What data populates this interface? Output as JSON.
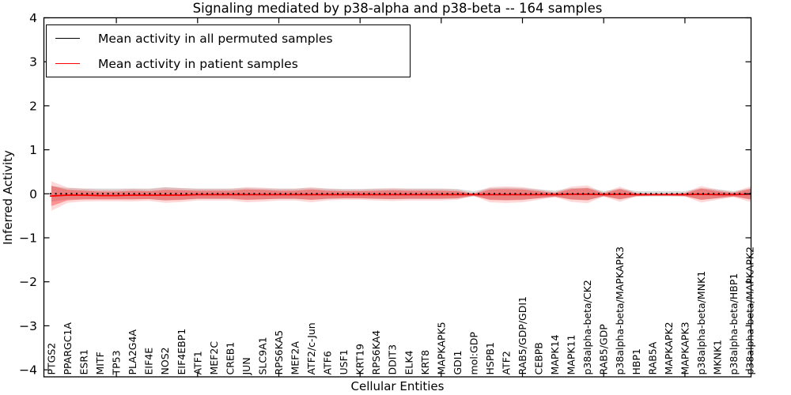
{
  "title": "Signaling mediated by p38-alpha and p38-beta -- 164 samples",
  "legend": {
    "items": [
      {
        "label": "Mean activity in all permuted samples",
        "color": "#000000"
      },
      {
        "label": "Mean activity in patient samples",
        "color": "#ff0000"
      }
    ],
    "position": "upper left"
  },
  "colors": {
    "patient_line": "#ff0000",
    "permuted_line": "#000000",
    "patient_band": "rgba(255,0,0,0.32)",
    "patient_band_fringe": "rgba(255,0,0,0.15)",
    "permuted_band": "rgba(110,110,110,0.24)",
    "axes": "#000000",
    "background": "#ffffff"
  },
  "chart_data": {
    "type": "line",
    "title": "Signaling mediated by p38-alpha and p38-beta -- 164 samples",
    "xlabel": "Cellular Entities",
    "ylabel": "Inferred Activity",
    "ylim": [
      -4,
      4
    ],
    "yticks": [
      4,
      3,
      2,
      1,
      0,
      -1,
      -2,
      -3,
      -4
    ],
    "xtick_indices": [
      4,
      9,
      14,
      19,
      24,
      29,
      34,
      39
    ],
    "grid": false,
    "legend_position": "upper left",
    "categories": [
      "PTGS2",
      "PPARGC1A",
      "ESR1",
      "MITF",
      "TP53",
      "PLA2G4A",
      "EIF4E",
      "NOS2",
      "EIF4EBP1",
      "ATF1",
      "MEF2C",
      "CREB1",
      "JUN",
      "SLC9A1",
      "RPS6KA5",
      "MEF2A",
      "ATF2/c-Jun",
      "ATF6",
      "USF1",
      "KRT19",
      "RPS6KA4",
      "DDIT3",
      "ELK4",
      "KRT8",
      "MAPKAPK5",
      "GDI1",
      "mol:GDP",
      "HSPB1",
      "ATF2",
      "RAB5/GDP/GDI1",
      "CEBPB",
      "MAPK14",
      "MAPK11",
      "p38alpha-beta/CK2",
      "RAB5/GDP",
      "p38alpha-beta/MAPKAPK3",
      "HBP1",
      "RAB5A",
      "MAPKAPK2",
      "MAPKAPK3",
      "p38alpha-beta/MNK1",
      "MKNK1",
      "p38alpha-beta/HBP1",
      "p38alpha-beta/MAPKAPK2"
    ],
    "series": [
      {
        "name": "Mean activity in all permuted samples",
        "color": "#000000",
        "style": "dotted",
        "values": [
          0,
          0,
          0,
          0,
          0,
          0,
          0,
          0,
          0,
          0,
          0,
          0,
          0,
          0,
          0,
          0,
          0,
          0,
          0,
          0,
          0,
          0,
          0,
          0,
          0,
          0,
          0,
          0,
          0,
          0,
          0,
          0,
          0,
          0,
          0,
          0,
          0,
          0,
          0,
          0,
          0,
          0,
          0,
          0
        ]
      },
      {
        "name": "Mean activity in patient samples",
        "color": "#ff0000",
        "style": "solid",
        "values": [
          -0.05,
          -0.03,
          -0.03,
          -0.04,
          -0.04,
          -0.03,
          -0.03,
          -0.03,
          -0.03,
          -0.02,
          -0.02,
          -0.02,
          -0.02,
          -0.02,
          -0.02,
          -0.02,
          -0.02,
          -0.02,
          -0.02,
          -0.02,
          -0.02,
          -0.02,
          -0.02,
          -0.02,
          -0.02,
          -0.02,
          -0.02,
          -0.02,
          -0.02,
          -0.02,
          -0.02,
          -0.02,
          -0.01,
          -0.01,
          -0.02,
          -0.01,
          -0.02,
          -0.02,
          -0.02,
          -0.02,
          -0.01,
          -0.02,
          -0.02,
          -0.01
        ]
      }
    ],
    "bands": [
      {
        "name": "permuted-std-band",
        "around_series": 0,
        "color": "rgba(110,110,110,0.24)",
        "half_widths": [
          0.18,
          0.13,
          0.12,
          0.12,
          0.12,
          0.12,
          0.12,
          0.15,
          0.13,
          0.12,
          0.12,
          0.12,
          0.13,
          0.12,
          0.12,
          0.12,
          0.13,
          0.12,
          0.11,
          0.11,
          0.12,
          0.12,
          0.12,
          0.12,
          0.12,
          0.11,
          0.06,
          0.13,
          0.14,
          0.13,
          0.1,
          0.07,
          0.13,
          0.14,
          0.06,
          0.12,
          0.06,
          0.06,
          0.06,
          0.06,
          0.13,
          0.1,
          0.06,
          0.12
        ]
      },
      {
        "name": "patient-std-band",
        "around_series": 1,
        "color": "rgba(255,0,0,0.32)",
        "fringe_color": "rgba(255,0,0,0.15)",
        "half_widths": [
          0.23,
          0.12,
          0.1,
          0.09,
          0.09,
          0.1,
          0.09,
          0.12,
          0.11,
          0.09,
          0.09,
          0.09,
          0.12,
          0.11,
          0.09,
          0.09,
          0.12,
          0.09,
          0.08,
          0.08,
          0.09,
          0.1,
          0.09,
          0.09,
          0.09,
          0.08,
          0.02,
          0.12,
          0.13,
          0.12,
          0.08,
          0.04,
          0.12,
          0.14,
          0.03,
          0.12,
          0.03,
          0.02,
          0.02,
          0.03,
          0.13,
          0.08,
          0.04,
          0.12
        ]
      }
    ]
  }
}
